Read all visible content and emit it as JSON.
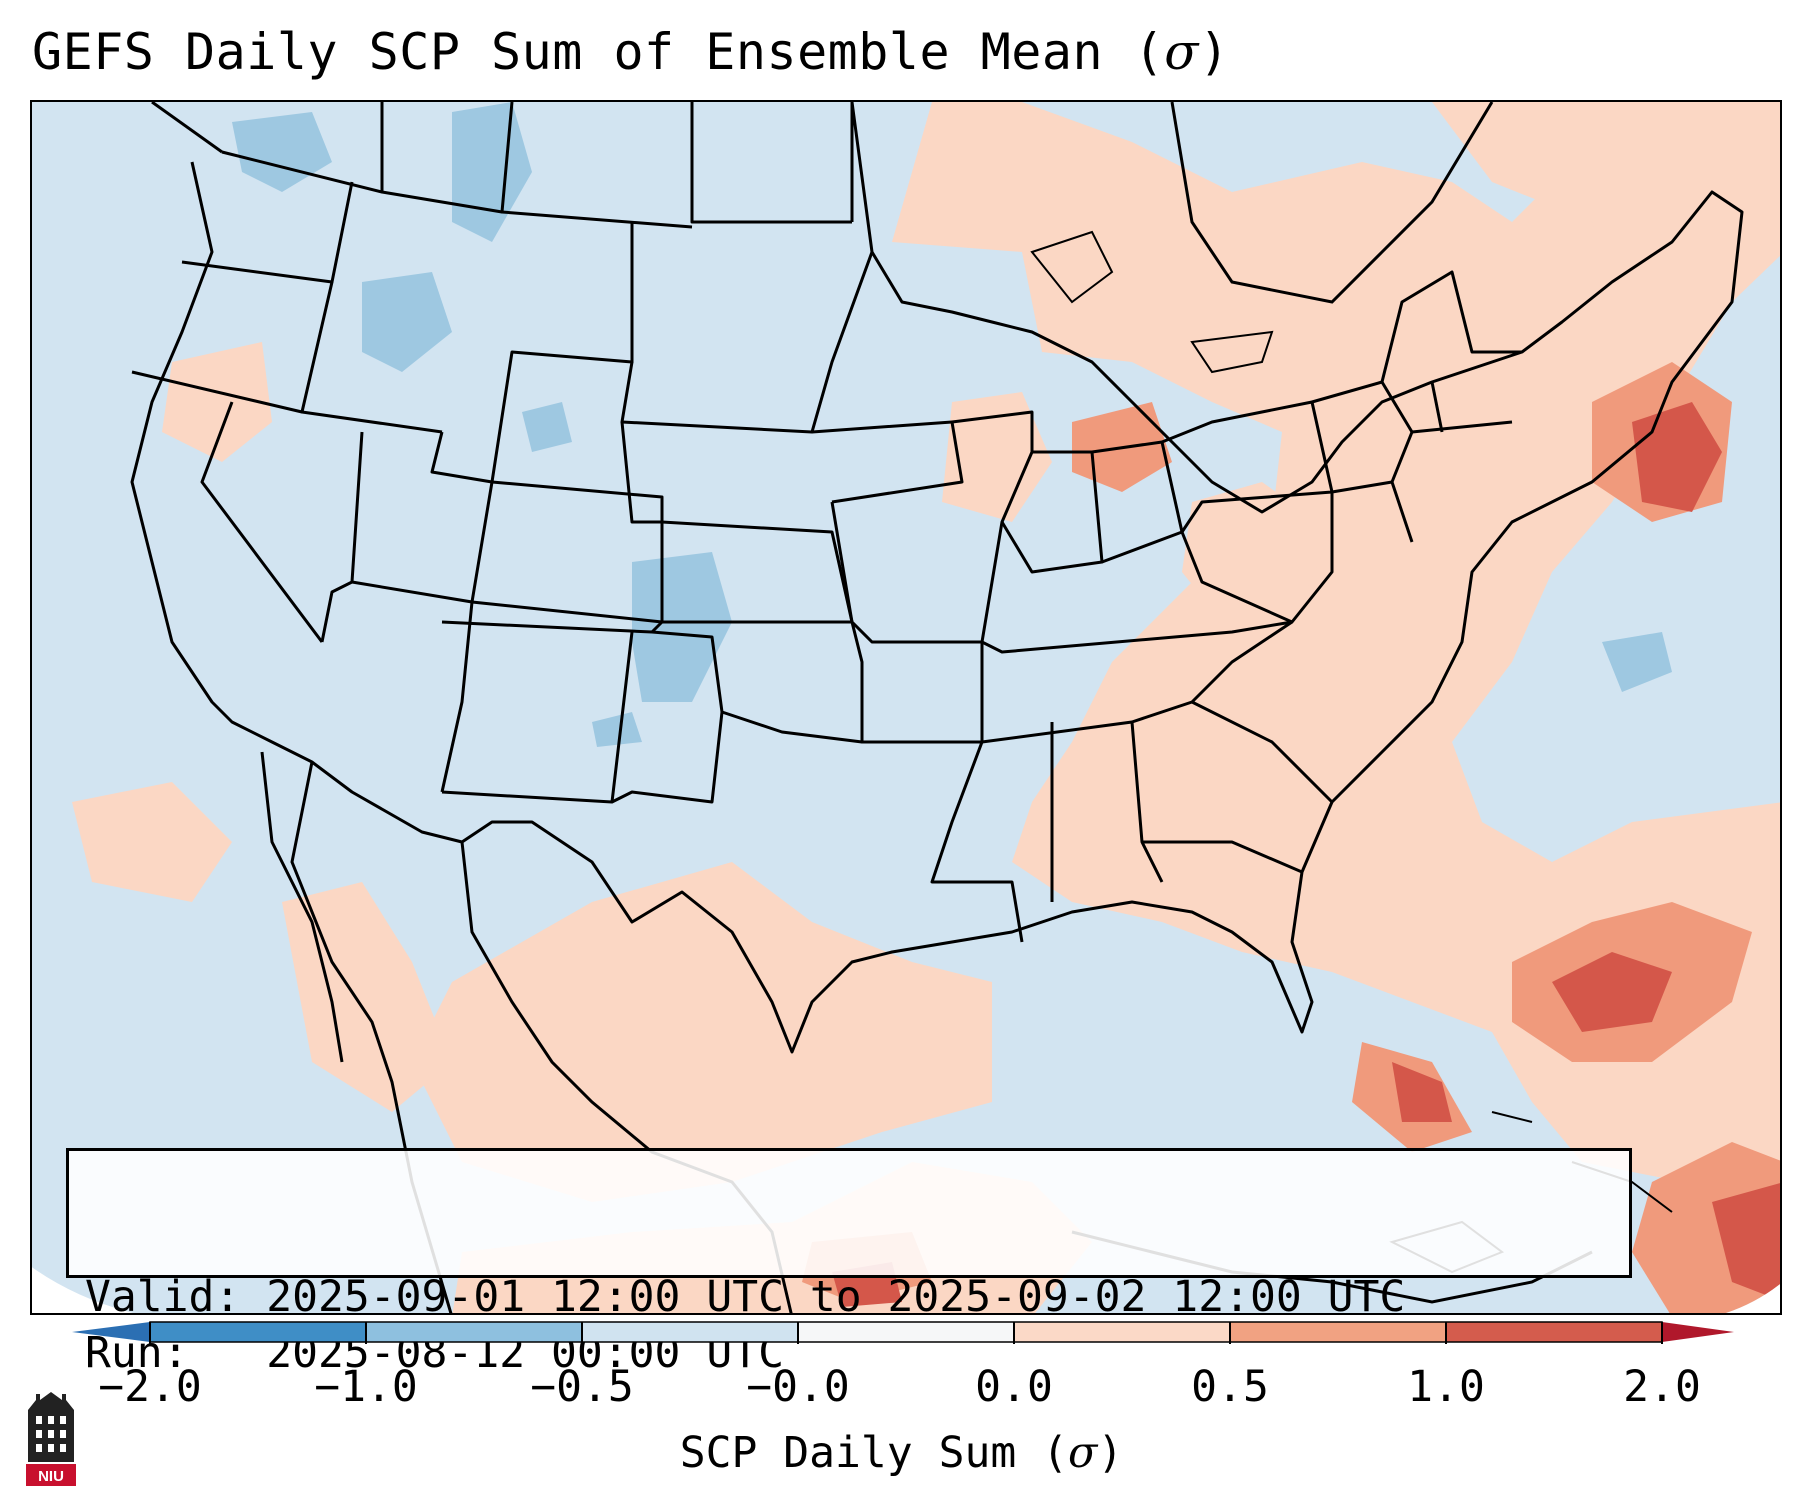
{
  "title": {
    "prefix": "GEFS Daily SCP Sum of Ensemble Mean (",
    "symbol": "σ",
    "suffix": ")"
  },
  "info": {
    "valid": "Valid: 2025-09-01 12:00 UTC to 2025-09-02 12:00 UTC",
    "run": "Run:   2025-08-12 00:00 UTC"
  },
  "colorbar": {
    "ticks": [
      "−2.0",
      "−1.0",
      "−0.5",
      "−0.0",
      "0.0",
      "0.5",
      "1.0",
      "2.0"
    ],
    "segment_colors": [
      "#3f8ec6",
      "#8ec0df",
      "#d0e3f0",
      "#f6f7f8",
      "#fbd9c7",
      "#f1a282",
      "#d45c4d"
    ],
    "under_color": "#2b6fb3",
    "over_color": "#b0182b",
    "label_prefix": "SCP Daily Sum (",
    "label_symbol": "σ",
    "label_suffix": ")"
  },
  "map": {
    "palette": {
      "neutral_negative": "#d2e4f1",
      "light_negative": "#9ec8e1",
      "neutral_positive": "#fbd7c4",
      "moderate_positive": "#f09a7c",
      "strong_positive": "#d4574a",
      "extreme_positive": "#b11a2c"
    }
  },
  "logo": {
    "text": "NIU"
  }
}
